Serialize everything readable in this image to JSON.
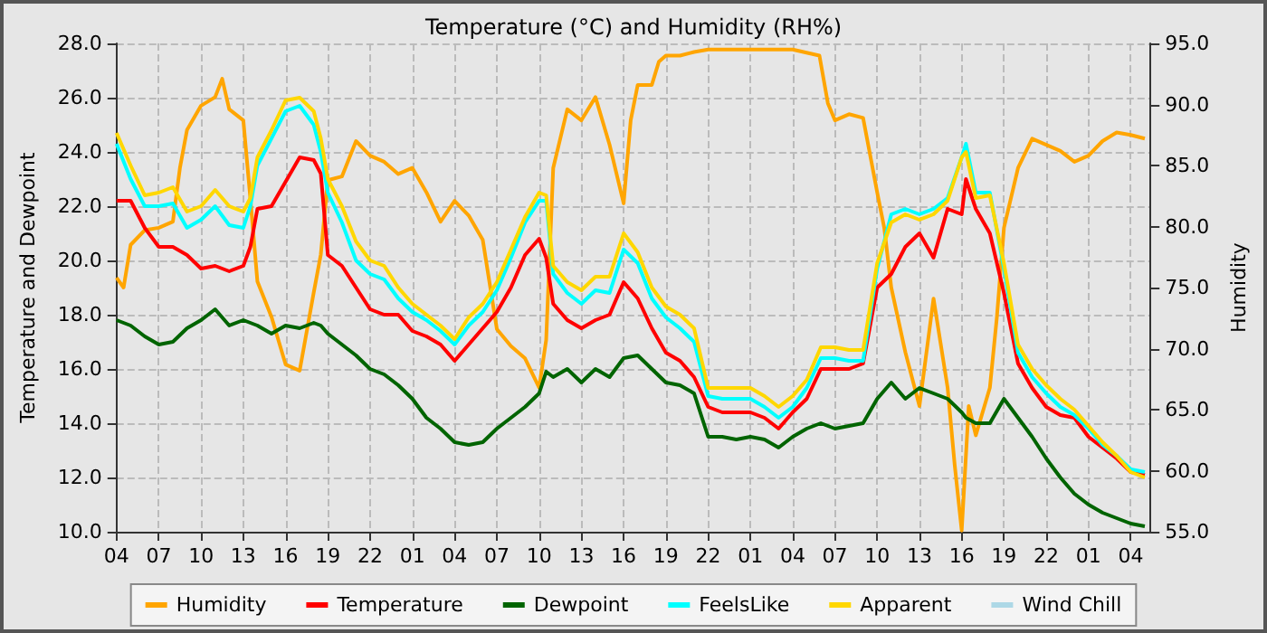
{
  "chart_data": {
    "type": "line",
    "title": "Temperature (°C) and Humidity (RH%)",
    "ylabel": "Temperature and Dewpoint",
    "y2label": "Humidity",
    "x": [
      "--01-01T04:00",
      "--01-01T05:00",
      "--01-01T06:00",
      "--01-01T07:00",
      "--01-01T08:00",
      "--01-01T09:00",
      "--01-01T10:00",
      "--01-01T11:00",
      "--01-01T12:00",
      "--01-01T13:00",
      "--01-01T13:30",
      "--01-01T14:00",
      "--01-01T15:00",
      "--01-01T16:00",
      "--01-01T17:00",
      "--01-01T18:00",
      "--01-01T18:30",
      "--01-01T19:00",
      "--01-01T20:00",
      "--01-01T21:00",
      "--01-01T22:00",
      "--01-01T23:00",
      "--01-02T00:00",
      "--01-02T01:00",
      "--01-02T02:00",
      "--01-02T03:00",
      "--01-02T04:00",
      "--01-02T05:00",
      "--01-02T06:00",
      "--01-02T07:00",
      "--01-02T08:00",
      "--01-02T09:00",
      "--01-02T10:00",
      "--01-02T10:30",
      "--01-02T11:00",
      "--01-02T12:00",
      "--01-02T13:00",
      "--01-02T14:00",
      "--01-02T15:00",
      "--01-02T16:00",
      "--01-02T17:00",
      "--01-02T18:00",
      "--01-02T19:00",
      "--01-02T20:00",
      "--01-02T21:00",
      "--01-02T22:00",
      "--01-02T23:00",
      "--01-03T00:00",
      "--01-03T01:00",
      "--01-03T02:00",
      "--01-03T03:00",
      "--01-03T04:00",
      "--01-03T05:00",
      "--01-03T06:00",
      "--01-03T07:00",
      "--01-03T08:00",
      "--01-03T09:00",
      "--01-03T10:00",
      "--01-03T11:00",
      "--01-03T12:00",
      "--01-03T13:00",
      "--01-03T14:00",
      "--01-03T15:00",
      "--01-03T16:00",
      "--01-03T16:18",
      "--01-03T17:00",
      "--01-03T18:00",
      "--01-03T19:00",
      "--01-03T20:00",
      "--01-03T21:00",
      "--01-03T22:00",
      "--01-03T23:00",
      "--01-04T00:00",
      "--01-04T01:00",
      "--01-04T02:00",
      "--01-04T03:00",
      "--01-04T04:00",
      "--01-04T05:00"
    ],
    "series": [
      {
        "name": "Humidity",
        "color": "#ffa500",
        "axis": "y2",
        "x": [
          "--01-01T04:00",
          "--01-01T04:30",
          "--01-01T05:00",
          "--01-01T06:00",
          "--01-01T07:00",
          "--01-01T08:00",
          "--01-01T08:30",
          "--01-01T09:00",
          "--01-01T10:00",
          "--01-01T11:00",
          "--01-01T11:30",
          "--01-01T12:00",
          "--01-01T13:00",
          "--01-01T13:30",
          "--01-01T14:00",
          "--01-01T15:00",
          "--01-01T16:00",
          "--01-01T17:00",
          "--01-01T18:00",
          "--01-01T18:30",
          "--01-01T19:00",
          "--01-01T20:00",
          "--01-01T21:00",
          "--01-01T22:00",
          "--01-01T23:00",
          "--01-02T00:00",
          "--01-02T01:00",
          "--01-02T02:00",
          "--01-02T03:00",
          "--01-02T04:00",
          "--01-02T05:00",
          "--01-02T06:00",
          "--01-02T07:00",
          "--01-02T08:00",
          "--01-02T09:00",
          "--01-02T10:00",
          "--01-02T10:30",
          "--01-02T11:00",
          "--01-02T12:00",
          "--01-02T13:00",
          "--01-02T14:00",
          "--01-02T15:00",
          "--01-02T16:00",
          "--01-02T16:30",
          "--01-02T17:00",
          "--01-02T18:00",
          "--01-02T18:30",
          "--01-02T19:00",
          "--01-02T20:00",
          "--01-02T21:00",
          "--01-02T22:00",
          "--01-03T00:00",
          "--01-03T02:00",
          "--01-03T04:00",
          "--01-03T05:54",
          "--01-03T06:30",
          "--01-03T07:00",
          "--01-03T08:00",
          "--01-03T09:00",
          "--01-03T10:00",
          "--01-03T10:30",
          "--01-03T11:00",
          "--01-03T12:00",
          "--01-03T13:00",
          "--01-03T14:00",
          "--01-03T15:00",
          "--01-03T15:30",
          "--01-03T16:00",
          "--01-03T16:30",
          "--01-03T17:00",
          "--01-03T18:00",
          "--01-03T18:30",
          "--01-03T19:00",
          "--01-03T20:00",
          "--01-03T21:00",
          "--01-03T22:00",
          "--01-03T23:00",
          "--01-04T00:00",
          "--01-04T01:00",
          "--01-04T02:00",
          "--01-04T03:00",
          "--01-04T04:00",
          "--01-04T05:00"
        ],
        "values": [
          75.8,
          75.0,
          78.5,
          79.7,
          79.9,
          80.4,
          84.8,
          87.9,
          89.9,
          90.6,
          92.1,
          89.6,
          88.7,
          82.3,
          75.5,
          72.6,
          68.7,
          68.2,
          74.6,
          77.7,
          83.8,
          84.1,
          87.0,
          85.8,
          85.3,
          84.3,
          84.8,
          82.8,
          80.4,
          82.1,
          80.9,
          78.9,
          71.6,
          70.2,
          69.2,
          66.8,
          70.7,
          84.8,
          89.6,
          88.7,
          90.6,
          86.7,
          81.9,
          88.7,
          91.6,
          91.6,
          93.5,
          94.0,
          94.0,
          94.3,
          94.5,
          94.5,
          94.5,
          94.5,
          94.0,
          90.1,
          88.7,
          89.2,
          88.9,
          82.8,
          79.9,
          75.0,
          69.7,
          65.3,
          74.1,
          66.8,
          60.5,
          55.1,
          65.3,
          62.9,
          66.8,
          72.6,
          79.9,
          84.8,
          87.2,
          86.7,
          86.2,
          85.3,
          85.8,
          87.0,
          87.7,
          87.5,
          87.2
        ]
      },
      {
        "name": "Temperature",
        "color": "#ff0000",
        "values": [
          22.2,
          22.2,
          21.2,
          20.5,
          20.5,
          20.2,
          19.7,
          19.8,
          19.6,
          19.8,
          20.5,
          21.9,
          22.0,
          22.9,
          23.8,
          23.7,
          23.2,
          20.2,
          19.8,
          19.0,
          18.2,
          18.0,
          18.0,
          17.4,
          17.2,
          16.9,
          16.3,
          16.9,
          17.5,
          18.1,
          19.0,
          20.2,
          20.8,
          20.1,
          18.4,
          17.8,
          17.5,
          17.8,
          18.0,
          19.2,
          18.6,
          17.5,
          16.6,
          16.3,
          15.7,
          14.6,
          14.4,
          14.4,
          14.4,
          14.2,
          13.8,
          14.4,
          14.9,
          16.0,
          16.0,
          16.0,
          16.2,
          19.0,
          19.5,
          20.5,
          21.0,
          20.1,
          21.9,
          21.7,
          23.0,
          21.9,
          21.0,
          18.8,
          16.2,
          15.3,
          14.6,
          14.3,
          14.2,
          13.5,
          13.1,
          12.7,
          12.2,
          12.1
        ]
      },
      {
        "name": "Dewpoint",
        "color": "#006400",
        "values": [
          17.8,
          17.6,
          17.2,
          16.9,
          17.0,
          17.5,
          17.8,
          18.2,
          17.6,
          17.8,
          17.7,
          17.6,
          17.3,
          17.6,
          17.5,
          17.7,
          17.6,
          17.3,
          16.9,
          16.5,
          16.0,
          15.8,
          15.4,
          14.9,
          14.2,
          13.8,
          13.3,
          13.2,
          13.3,
          13.8,
          14.2,
          14.6,
          15.1,
          15.9,
          15.7,
          16.0,
          15.5,
          16.0,
          15.7,
          16.4,
          16.5,
          16.0,
          15.5,
          15.4,
          15.1,
          13.5,
          13.5,
          13.4,
          13.5,
          13.4,
          13.1,
          13.5,
          13.8,
          14.0,
          13.8,
          13.9,
          14.0,
          14.9,
          15.5,
          14.9,
          15.3,
          15.1,
          14.9,
          14.4,
          14.2,
          14.0,
          14.0,
          14.9,
          14.2,
          13.5,
          12.7,
          12.0,
          11.4,
          11.0,
          10.7,
          10.5,
          10.3,
          10.2
        ]
      },
      {
        "name": "FeelsLike",
        "color": "#00ffff",
        "values": [
          24.3,
          23.0,
          22.0,
          22.0,
          22.1,
          21.2,
          21.5,
          22.0,
          21.3,
          21.2,
          22.0,
          23.5,
          24.5,
          25.5,
          25.7,
          25.0,
          24.0,
          22.5,
          21.4,
          20.0,
          19.5,
          19.3,
          18.6,
          18.1,
          17.8,
          17.4,
          16.9,
          17.6,
          18.1,
          18.9,
          20.1,
          21.4,
          22.2,
          22.2,
          19.5,
          18.8,
          18.4,
          18.9,
          18.8,
          20.4,
          19.9,
          18.6,
          17.9,
          17.5,
          17.0,
          15.0,
          14.9,
          14.9,
          14.9,
          14.6,
          14.2,
          14.6,
          15.3,
          16.4,
          16.4,
          16.3,
          16.3,
          19.7,
          21.7,
          21.9,
          21.7,
          21.9,
          22.3,
          23.8,
          24.3,
          22.5,
          22.5,
          19.7,
          16.6,
          15.7,
          15.1,
          14.6,
          14.3,
          13.8,
          13.2,
          12.8,
          12.3,
          12.2
        ]
      },
      {
        "name": "Apparent",
        "color": "#ffd700",
        "values": [
          24.7,
          23.5,
          22.4,
          22.5,
          22.7,
          21.8,
          22.0,
          22.6,
          22.0,
          21.8,
          22.3,
          23.8,
          24.8,
          25.9,
          26.0,
          25.5,
          24.5,
          23.0,
          22.0,
          20.7,
          20.0,
          19.8,
          19.0,
          18.4,
          18.0,
          17.6,
          17.1,
          17.9,
          18.4,
          19.2,
          20.4,
          21.6,
          22.5,
          22.4,
          19.8,
          19.2,
          18.9,
          19.4,
          19.4,
          21.0,
          20.3,
          19.0,
          18.3,
          18.0,
          17.5,
          15.3,
          15.3,
          15.3,
          15.3,
          15.0,
          14.6,
          15.0,
          15.6,
          16.8,
          16.8,
          16.7,
          16.7,
          19.9,
          21.4,
          21.7,
          21.5,
          21.7,
          22.2,
          23.8,
          24.0,
          22.3,
          22.4,
          19.9,
          16.9,
          16.0,
          15.4,
          14.9,
          14.5,
          13.9,
          13.3,
          12.8,
          12.2,
          12.0
        ]
      },
      {
        "name": "Wind Chill",
        "color": "#add8e6",
        "values": [
          null,
          null,
          null,
          null,
          null,
          null,
          null,
          null,
          null,
          null,
          null,
          null,
          null,
          null,
          null,
          null,
          null,
          null,
          null,
          null,
          null,
          null,
          null,
          null,
          null,
          null,
          null,
          null,
          null,
          null,
          null,
          null,
          null,
          null,
          null,
          null,
          null,
          null,
          null,
          null,
          null,
          null,
          null,
          null,
          null,
          null,
          null,
          null,
          null,
          null,
          null,
          null,
          null,
          null,
          null,
          null,
          null,
          null,
          null,
          null,
          null,
          null,
          null,
          null,
          null,
          null,
          null,
          null,
          null,
          null,
          null,
          null,
          null,
          null,
          null,
          null,
          null,
          null
        ]
      }
    ],
    "xlim": [
      "--01-01T04:00",
      "--01-04T05:24"
    ],
    "xticks": [
      {
        "value": "--01-01T04:00",
        "label": "04"
      },
      {
        "value": "--01-01T07:00",
        "label": "07"
      },
      {
        "value": "--01-01T10:00",
        "label": "10"
      },
      {
        "value": "--01-01T13:00",
        "label": "13"
      },
      {
        "value": "--01-01T16:00",
        "label": "16"
      },
      {
        "value": "--01-01T19:00",
        "label": "19"
      },
      {
        "value": "--01-01T22:00",
        "label": "22"
      },
      {
        "value": "--01-02T01:00",
        "label": "01"
      },
      {
        "value": "--01-02T04:00",
        "label": "04"
      },
      {
        "value": "--01-02T07:00",
        "label": "07"
      },
      {
        "value": "--01-02T10:00",
        "label": "10"
      },
      {
        "value": "--01-02T13:00",
        "label": "13"
      },
      {
        "value": "--01-02T16:00",
        "label": "16"
      },
      {
        "value": "--01-02T19:00",
        "label": "19"
      },
      {
        "value": "--01-02T22:00",
        "label": "22"
      },
      {
        "value": "--01-03T01:00",
        "label": "01"
      },
      {
        "value": "--01-03T04:00",
        "label": "04"
      },
      {
        "value": "--01-03T07:00",
        "label": "07"
      },
      {
        "value": "--01-03T10:00",
        "label": "10"
      },
      {
        "value": "--01-03T13:00",
        "label": "13"
      },
      {
        "value": "--01-03T16:00",
        "label": "16"
      },
      {
        "value": "--01-03T19:00",
        "label": "19"
      },
      {
        "value": "--01-03T22:00",
        "label": "22"
      },
      {
        "value": "--01-04T01:00",
        "label": "01"
      },
      {
        "value": "--01-04T04:00",
        "label": "04"
      }
    ],
    "ylim": [
      10,
      28
    ],
    "yticks": [
      {
        "value": 10,
        "label": "10.0"
      },
      {
        "value": 12,
        "label": "12.0"
      },
      {
        "value": 14,
        "label": "14.0"
      },
      {
        "value": 16,
        "label": "16.0"
      },
      {
        "value": 18,
        "label": "18.0"
      },
      {
        "value": 20,
        "label": "20.0"
      },
      {
        "value": 22,
        "label": "22.0"
      },
      {
        "value": 24,
        "label": "24.0"
      },
      {
        "value": 26,
        "label": "26.0"
      },
      {
        "value": 28,
        "label": "28.0"
      }
    ],
    "y2lim": [
      55,
      95
    ],
    "y2ticks": [
      {
        "value": 55,
        "label": "55.0"
      },
      {
        "value": 60,
        "label": "60.0"
      },
      {
        "value": 65,
        "label": "65.0"
      },
      {
        "value": 70,
        "label": "70.0"
      },
      {
        "value": 75,
        "label": "75.0"
      },
      {
        "value": 80,
        "label": "80.0"
      },
      {
        "value": 85,
        "label": "85.0"
      },
      {
        "value": 90,
        "label": "90.0"
      },
      {
        "value": 95,
        "label": "95.0"
      }
    ],
    "grid": true,
    "legend": "bottom",
    "marker": "none",
    "line_style": "solid"
  }
}
